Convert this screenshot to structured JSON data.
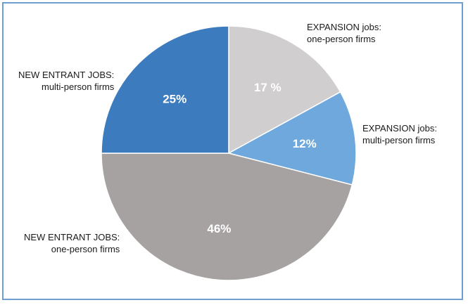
{
  "chart_data": {
    "type": "pie",
    "slices": [
      {
        "label": "EXPANSION jobs:\none-person firms",
        "value": 17,
        "value_label": "17 %",
        "color": "#d0cece"
      },
      {
        "label": "EXPANSION jobs:\nmulti-person firms",
        "value": 12,
        "value_label": "12%",
        "color": "#6fa8dc"
      },
      {
        "label": "NEW ENTRANT JOBS:\none-person firms",
        "value": 46,
        "value_label": "46%",
        "color": "#a6a2a2"
      },
      {
        "label": "NEW ENTRANT JOBS:\nmulti-person firms",
        "value": 25,
        "value_label": "25%",
        "color": "#3d7bbf"
      }
    ],
    "start": "12 o'clock",
    "direction": "clockwise",
    "value_label_color": "#ffffff",
    "legend": "none"
  }
}
